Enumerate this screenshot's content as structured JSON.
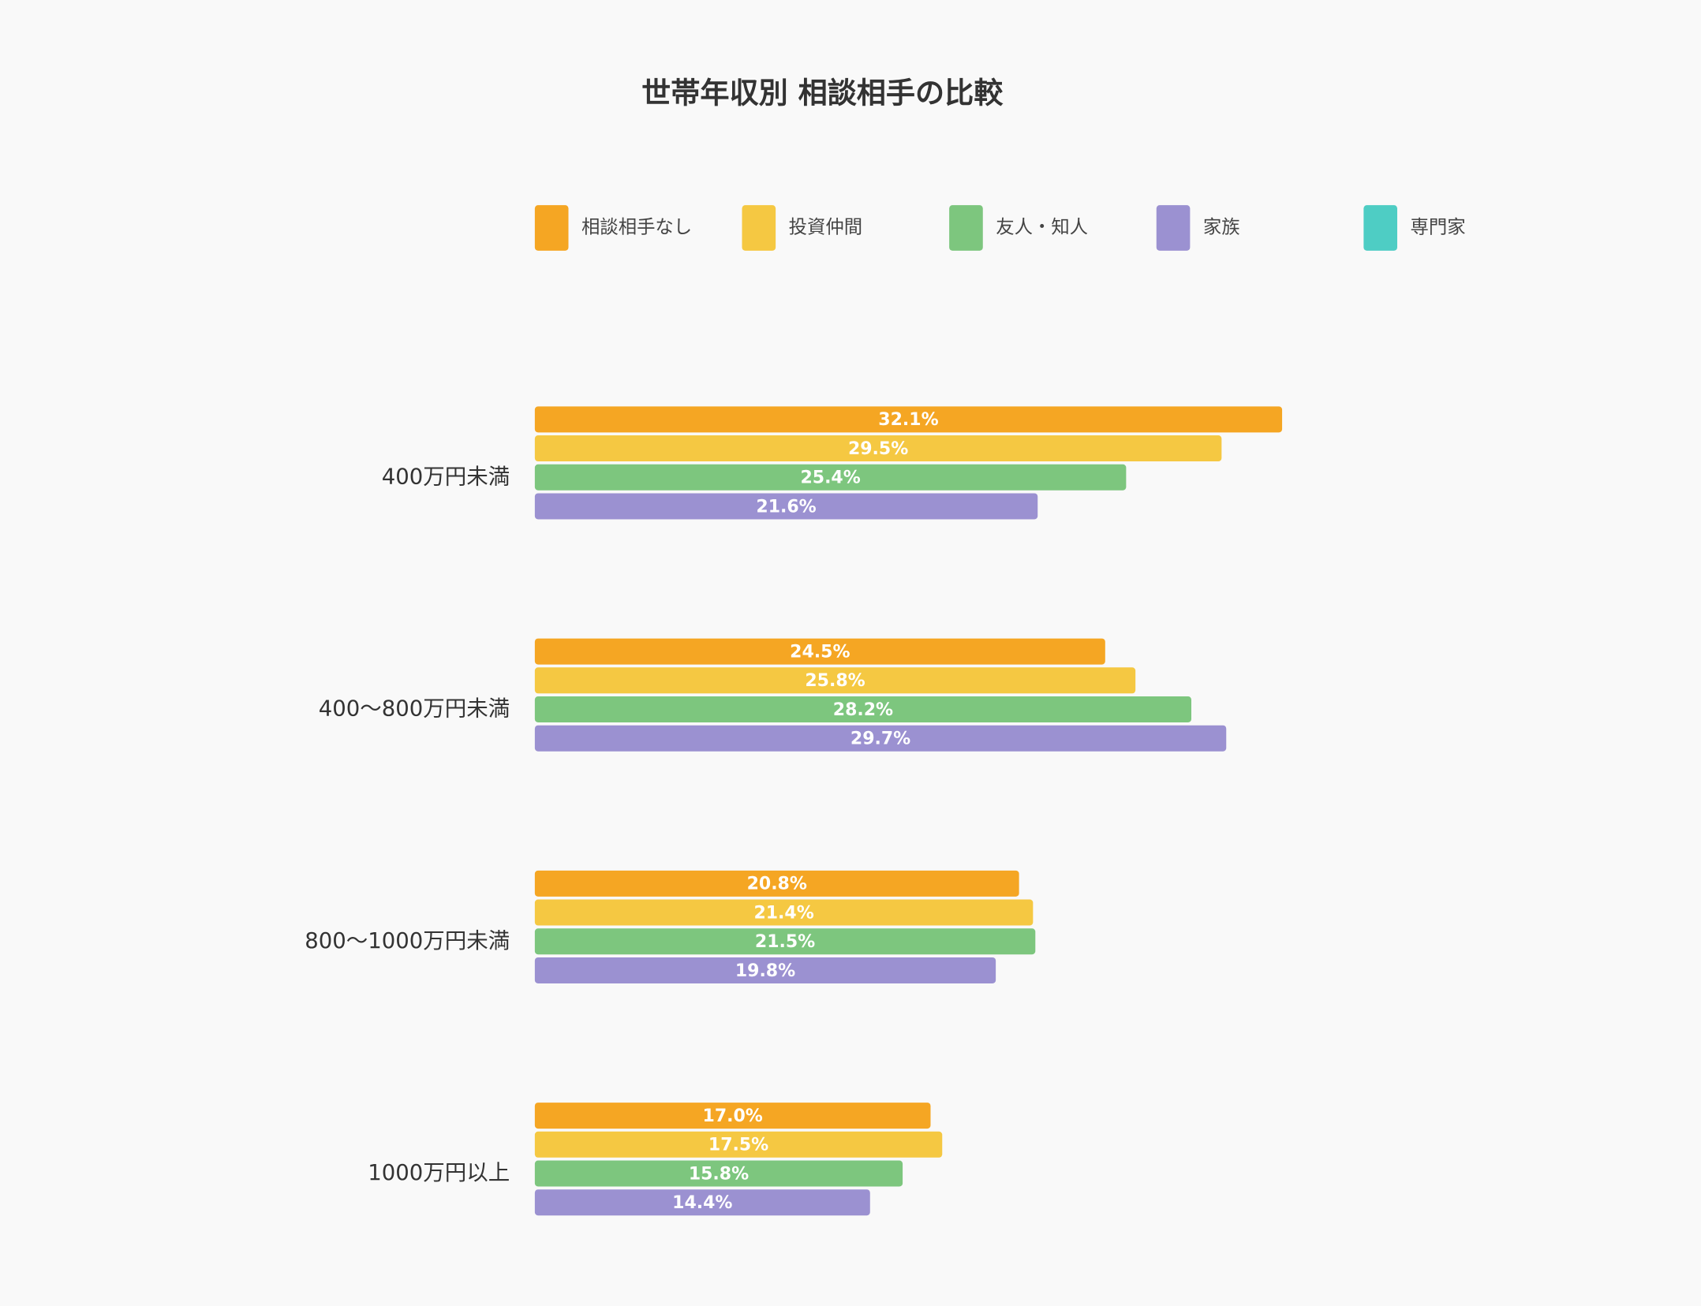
{
  "chart_data": {
    "type": "barh",
    "title": "世帯年収別 相談相手の比較",
    "categories": [
      "400万円未満",
      "400〜800万円未満",
      "800〜1000万円未満",
      "1000万円以上"
    ],
    "series": [
      {
        "name": "相談相手なし",
        "color": "#f5a623",
        "values": [
          32.1,
          24.5,
          20.8,
          17.0
        ],
        "value_labels": [
          "32.1%",
          "24.5%",
          "20.8%",
          "17.0%"
        ]
      },
      {
        "name": "投資仲間",
        "color": "#f5c842",
        "values": [
          29.5,
          25.8,
          21.4,
          17.5
        ],
        "value_labels": [
          "29.5%",
          "25.8%",
          "21.4%",
          "17.5%"
        ]
      },
      {
        "name": "友人・知人",
        "color": "#7dc67e",
        "values": [
          25.4,
          28.2,
          21.5,
          15.8
        ],
        "value_labels": [
          "25.4%",
          "28.2%",
          "21.5%",
          "15.8%"
        ]
      },
      {
        "name": "家族",
        "color": "#9b91d1",
        "values": [
          21.6,
          29.7,
          19.8,
          14.4
        ],
        "value_labels": [
          "21.6%",
          "29.7%",
          "19.8%",
          "14.4%"
        ]
      },
      {
        "name": "専門家",
        "color": "#4ecdc4",
        "values": [
          null,
          null,
          null,
          null
        ]
      }
    ]
  }
}
